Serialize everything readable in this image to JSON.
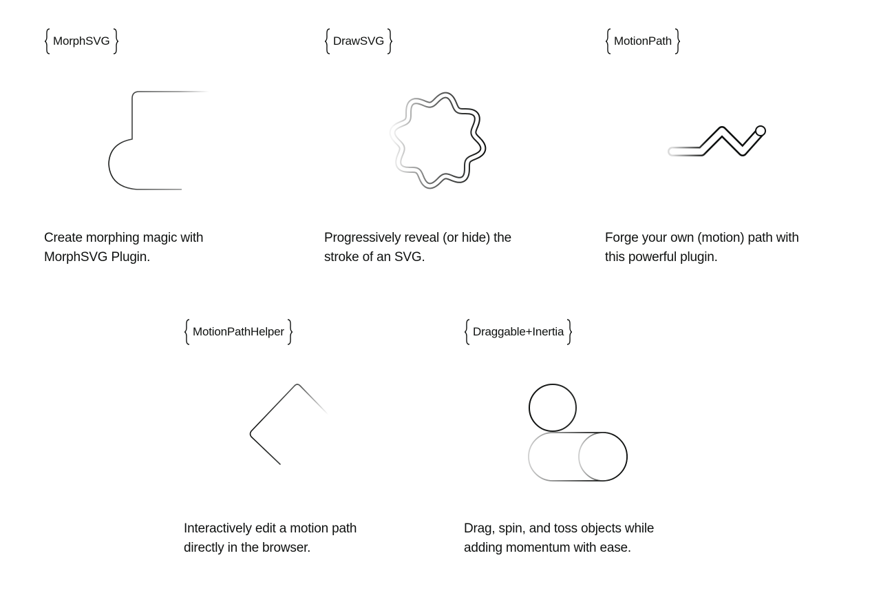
{
  "cards": [
    {
      "tag": "MorphSVG",
      "description_line1": "Create morphing magic with",
      "description_line2": "MorphSVG Plugin."
    },
    {
      "tag": "DrawSVG",
      "description_line1": "Progressively reveal (or hide) the",
      "description_line2": "stroke of an SVG."
    },
    {
      "tag": "MotionPath",
      "description_line1": "Forge your own (motion) path with",
      "description_line2": "this powerful plugin."
    },
    {
      "tag": "MotionPathHelper",
      "description_line1": "Interactively edit a motion path",
      "description_line2": "directly in the browser."
    },
    {
      "tag": "Draggable+Inertia",
      "description_line1": "Drag, spin, and toss objects while",
      "description_line2": "adding momentum with ease."
    }
  ],
  "colors": {
    "ink": "#0e100f",
    "background": "#ffffff"
  },
  "icons": [
    "left-brace-icon",
    "right-brace-icon",
    "morph-shape-icon",
    "wavy-circle-icon",
    "motion-path-icon",
    "corner-path-icon",
    "draggable-circles-icon"
  ]
}
